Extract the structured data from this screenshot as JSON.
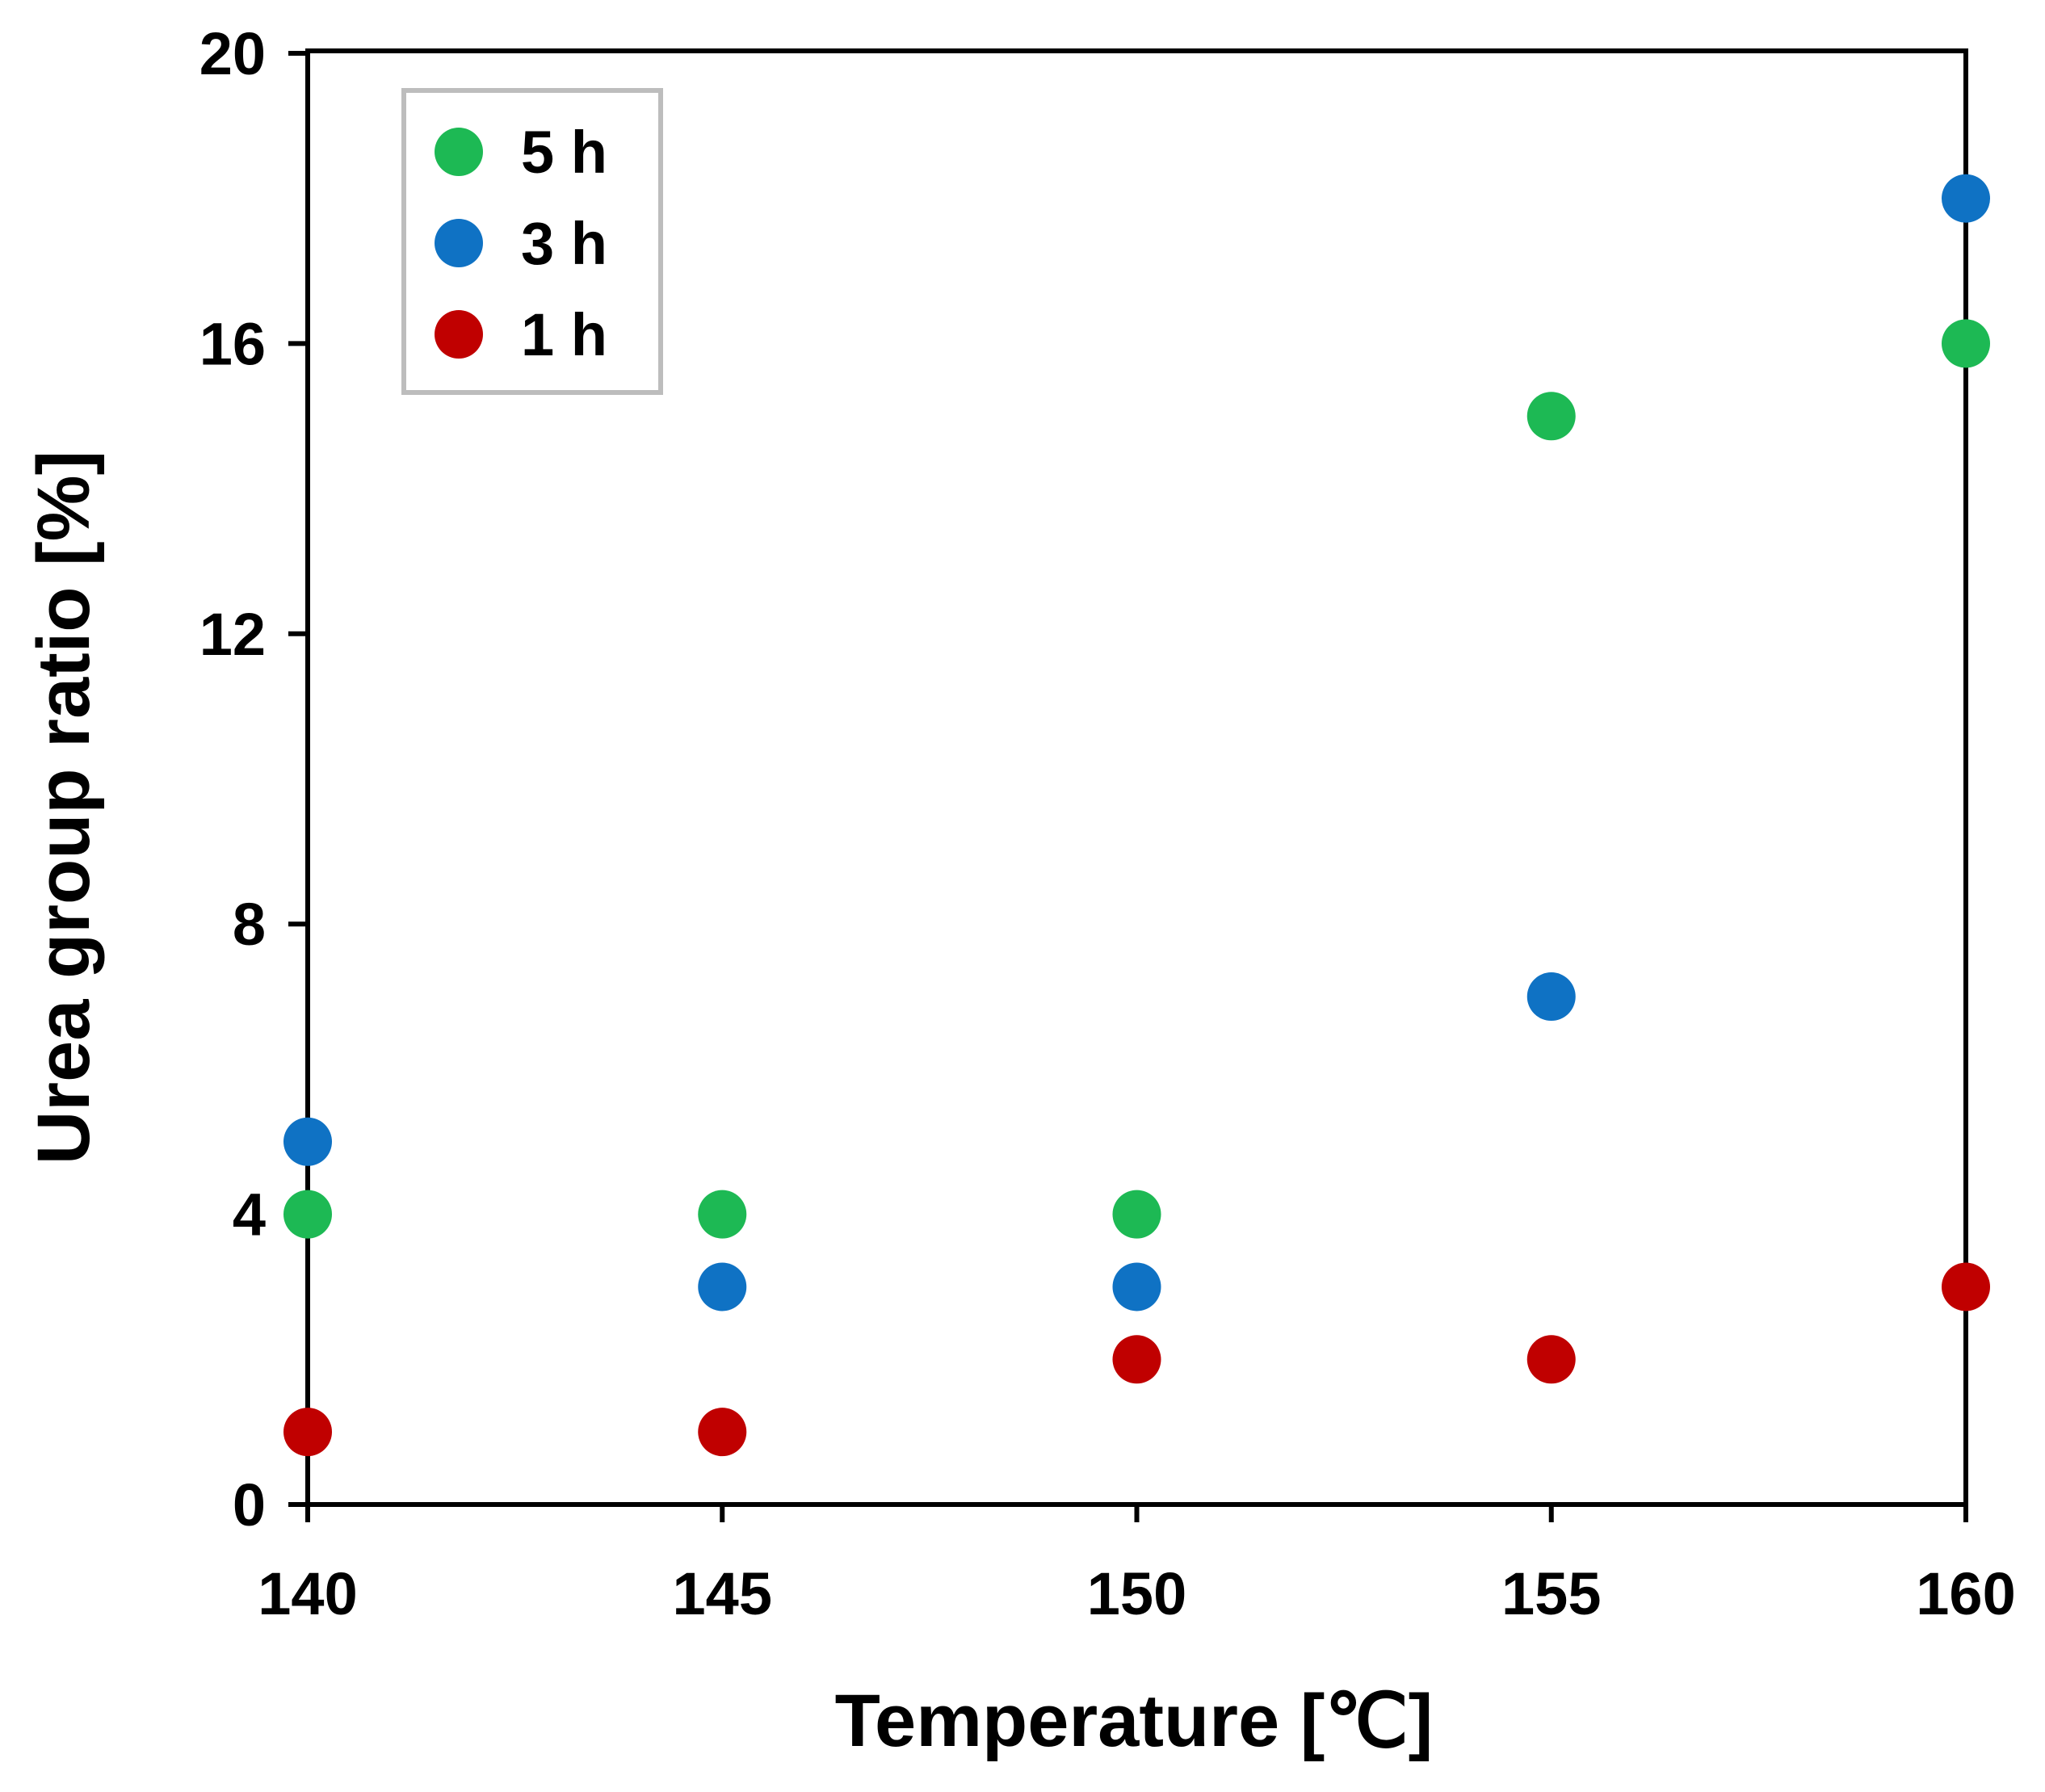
{
  "chart_data": {
    "type": "scatter",
    "title": "",
    "xlabel": "Temperature [℃]",
    "ylabel": "Urea group ratio [%]",
    "xlim": [
      140,
      160
    ],
    "ylim": [
      0,
      20
    ],
    "xticks": [
      140,
      145,
      150,
      155,
      160
    ],
    "yticks": [
      0,
      4,
      8,
      12,
      16,
      20
    ],
    "x_tick_labels": [
      "140",
      "145",
      "150",
      "155",
      "160"
    ],
    "y_tick_labels": [
      "0",
      "4",
      "8",
      "12",
      "16",
      "20"
    ],
    "grid": false,
    "legend_position": "top-left",
    "series": [
      {
        "name": "5 h",
        "color": "#1db954",
        "x": [
          140,
          145,
          150,
          155,
          160
        ],
        "y": [
          4,
          4,
          4,
          15,
          16
        ]
      },
      {
        "name": "3 h",
        "color": "#0f72c4",
        "x": [
          140,
          145,
          150,
          155,
          160
        ],
        "y": [
          5,
          3,
          3,
          7,
          18
        ]
      },
      {
        "name": "1 h",
        "color": "#c00000",
        "x": [
          140,
          145,
          150,
          155,
          160
        ],
        "y": [
          1,
          1,
          2,
          2,
          3
        ]
      }
    ]
  }
}
